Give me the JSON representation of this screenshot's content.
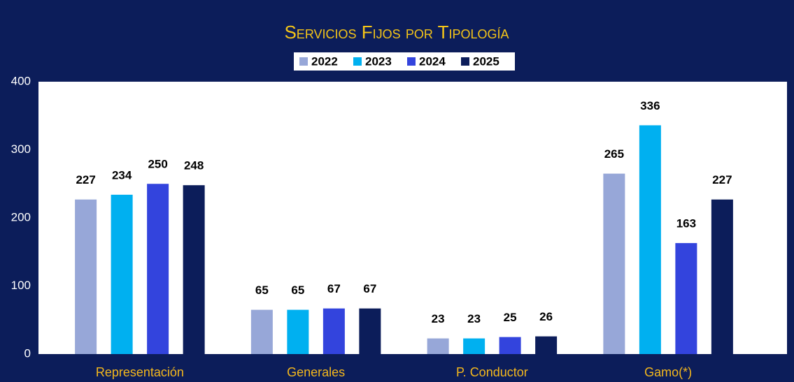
{
  "chart_data": {
    "type": "bar",
    "title": "Servicios Fijos por Tipología",
    "categories": [
      "Representación",
      "Generales",
      "P. Conductor",
      "Gamo(*)"
    ],
    "series": [
      {
        "name": "2022",
        "color": "#97a7d8",
        "values": [
          227,
          65,
          23,
          265
        ]
      },
      {
        "name": "2023",
        "color": "#00b0f0",
        "values": [
          234,
          65,
          23,
          336
        ]
      },
      {
        "name": "2024",
        "color": "#3344dd",
        "values": [
          250,
          67,
          25,
          163
        ]
      },
      {
        "name": "2025",
        "color": "#0c1d5a",
        "values": [
          248,
          67,
          26,
          227
        ]
      }
    ],
    "ylim": [
      0,
      400
    ],
    "yticks": [
      0,
      100,
      200,
      300,
      400
    ],
    "grid": false
  }
}
